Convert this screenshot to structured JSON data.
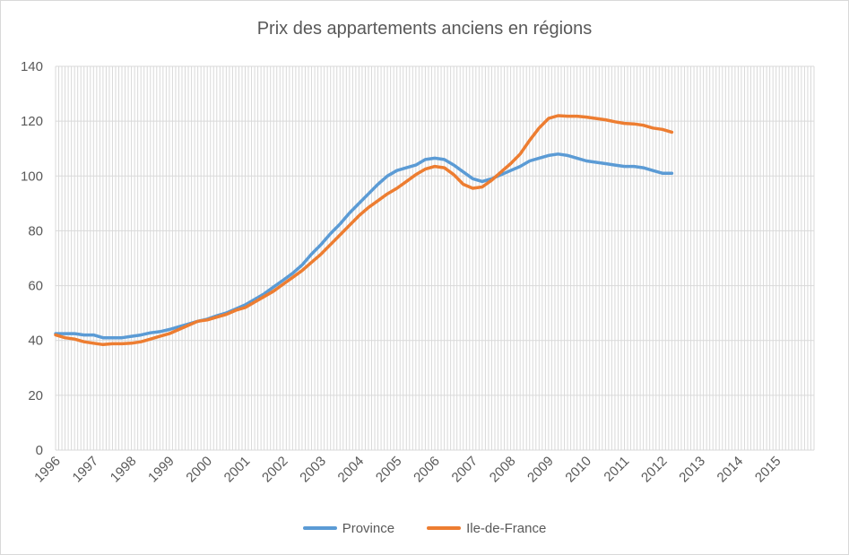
{
  "chart_data": {
    "type": "line",
    "title": "Prix des appartements anciens en régions",
    "xlabel": "",
    "ylabel": "",
    "ylim": [
      0,
      140
    ],
    "yticks": [
      0,
      20,
      40,
      60,
      80,
      100,
      120,
      140
    ],
    "xlim": [
      1996,
      2016
    ],
    "xticks": [
      "1996",
      "1997",
      "1998",
      "1999",
      "2000",
      "2001",
      "2002",
      "2003",
      "2004",
      "2005",
      "2006",
      "2007",
      "2008",
      "2009",
      "2010",
      "2011",
      "2012",
      "2013",
      "2014",
      "2015"
    ],
    "grid": true,
    "legend_position": "bottom",
    "series": [
      {
        "name": "Province",
        "color": "#5b9bd5",
        "points": [
          [
            1996.0,
            42.5
          ],
          [
            1996.25,
            42.5
          ],
          [
            1996.5,
            42.5
          ],
          [
            1996.75,
            42.0
          ],
          [
            1997.0,
            42.0
          ],
          [
            1997.25,
            41.0
          ],
          [
            1997.5,
            41.0
          ],
          [
            1997.75,
            41.0
          ],
          [
            1998.0,
            41.5
          ],
          [
            1998.25,
            42.0
          ],
          [
            1998.5,
            42.8
          ],
          [
            1998.75,
            43.2
          ],
          [
            1999.0,
            44.0
          ],
          [
            1999.25,
            45.0
          ],
          [
            1999.5,
            46.0
          ],
          [
            1999.75,
            47.0
          ],
          [
            2000.0,
            47.8
          ],
          [
            2000.25,
            49.0
          ],
          [
            2000.5,
            50.0
          ],
          [
            2000.75,
            51.5
          ],
          [
            2001.0,
            53.0
          ],
          [
            2001.25,
            55.0
          ],
          [
            2001.5,
            57.0
          ],
          [
            2001.75,
            59.5
          ],
          [
            2002.0,
            62.0
          ],
          [
            2002.25,
            64.5
          ],
          [
            2002.5,
            67.5
          ],
          [
            2002.75,
            71.5
          ],
          [
            2003.0,
            75.0
          ],
          [
            2003.25,
            79.0
          ],
          [
            2003.5,
            82.5
          ],
          [
            2003.75,
            86.5
          ],
          [
            2004.0,
            90.0
          ],
          [
            2004.25,
            93.5
          ],
          [
            2004.5,
            97.0
          ],
          [
            2004.75,
            100.0
          ],
          [
            2005.0,
            102.0
          ],
          [
            2005.25,
            103.0
          ],
          [
            2005.5,
            104.0
          ],
          [
            2005.75,
            106.0
          ],
          [
            2006.0,
            106.5
          ],
          [
            2006.25,
            106.0
          ],
          [
            2006.5,
            104.0
          ],
          [
            2006.75,
            101.5
          ],
          [
            2007.0,
            99.0
          ],
          [
            2007.25,
            98.0
          ],
          [
            2007.5,
            99.0
          ],
          [
            2007.75,
            100.5
          ],
          [
            2008.0,
            102.0
          ],
          [
            2008.25,
            103.5
          ],
          [
            2008.5,
            105.5
          ],
          [
            2008.75,
            106.5
          ],
          [
            2009.0,
            107.5
          ],
          [
            2009.25,
            108.0
          ],
          [
            2009.5,
            107.5
          ],
          [
            2009.75,
            106.5
          ],
          [
            2010.0,
            105.5
          ],
          [
            2010.25,
            105.0
          ],
          [
            2010.5,
            104.5
          ],
          [
            2010.75,
            104.0
          ],
          [
            2011.0,
            103.5
          ],
          [
            2011.25,
            103.5
          ],
          [
            2011.5,
            103.0
          ],
          [
            2011.75,
            102.0
          ],
          [
            2012.0,
            101.0
          ],
          [
            2012.25,
            101.0
          ]
        ]
      },
      {
        "name": "Ile-de-France",
        "color": "#ed7d31",
        "points": [
          [
            1996.0,
            42.0
          ],
          [
            1996.25,
            41.0
          ],
          [
            1996.5,
            40.5
          ],
          [
            1996.75,
            39.5
          ],
          [
            1997.0,
            39.0
          ],
          [
            1997.25,
            38.5
          ],
          [
            1997.5,
            38.8
          ],
          [
            1997.75,
            38.8
          ],
          [
            1998.0,
            39.0
          ],
          [
            1998.25,
            39.5
          ],
          [
            1998.5,
            40.5
          ],
          [
            1998.75,
            41.5
          ],
          [
            1999.0,
            42.5
          ],
          [
            1999.25,
            44.0
          ],
          [
            1999.5,
            45.5
          ],
          [
            1999.75,
            47.0
          ],
          [
            2000.0,
            47.5
          ],
          [
            2000.25,
            48.5
          ],
          [
            2000.5,
            49.5
          ],
          [
            2000.75,
            51.0
          ],
          [
            2001.0,
            52.0
          ],
          [
            2001.25,
            54.0
          ],
          [
            2001.5,
            56.0
          ],
          [
            2001.75,
            58.0
          ],
          [
            2002.0,
            60.5
          ],
          [
            2002.25,
            63.0
          ],
          [
            2002.5,
            65.5
          ],
          [
            2002.75,
            68.5
          ],
          [
            2003.0,
            71.5
          ],
          [
            2003.25,
            75.0
          ],
          [
            2003.5,
            78.5
          ],
          [
            2003.75,
            82.0
          ],
          [
            2004.0,
            85.5
          ],
          [
            2004.25,
            88.5
          ],
          [
            2004.5,
            91.0
          ],
          [
            2004.75,
            93.5
          ],
          [
            2005.0,
            95.5
          ],
          [
            2005.25,
            98.0
          ],
          [
            2005.5,
            100.5
          ],
          [
            2005.75,
            102.5
          ],
          [
            2006.0,
            103.5
          ],
          [
            2006.25,
            103.0
          ],
          [
            2006.5,
            100.5
          ],
          [
            2006.75,
            97.0
          ],
          [
            2007.0,
            95.5
          ],
          [
            2007.25,
            96.0
          ],
          [
            2007.5,
            98.5
          ],
          [
            2007.75,
            101.5
          ],
          [
            2008.0,
            104.5
          ],
          [
            2008.25,
            108.0
          ],
          [
            2008.5,
            113.0
          ],
          [
            2008.75,
            117.5
          ],
          [
            2009.0,
            121.0
          ],
          [
            2009.25,
            122.0
          ],
          [
            2009.5,
            121.8
          ],
          [
            2009.75,
            121.8
          ],
          [
            2010.0,
            121.5
          ],
          [
            2010.25,
            121.0
          ],
          [
            2010.5,
            120.5
          ],
          [
            2010.75,
            119.8
          ],
          [
            2011.0,
            119.2
          ],
          [
            2011.25,
            119.0
          ],
          [
            2011.5,
            118.5
          ],
          [
            2011.75,
            117.5
          ],
          [
            2012.0,
            117.0
          ],
          [
            2012.25,
            116.0
          ]
        ]
      }
    ]
  }
}
